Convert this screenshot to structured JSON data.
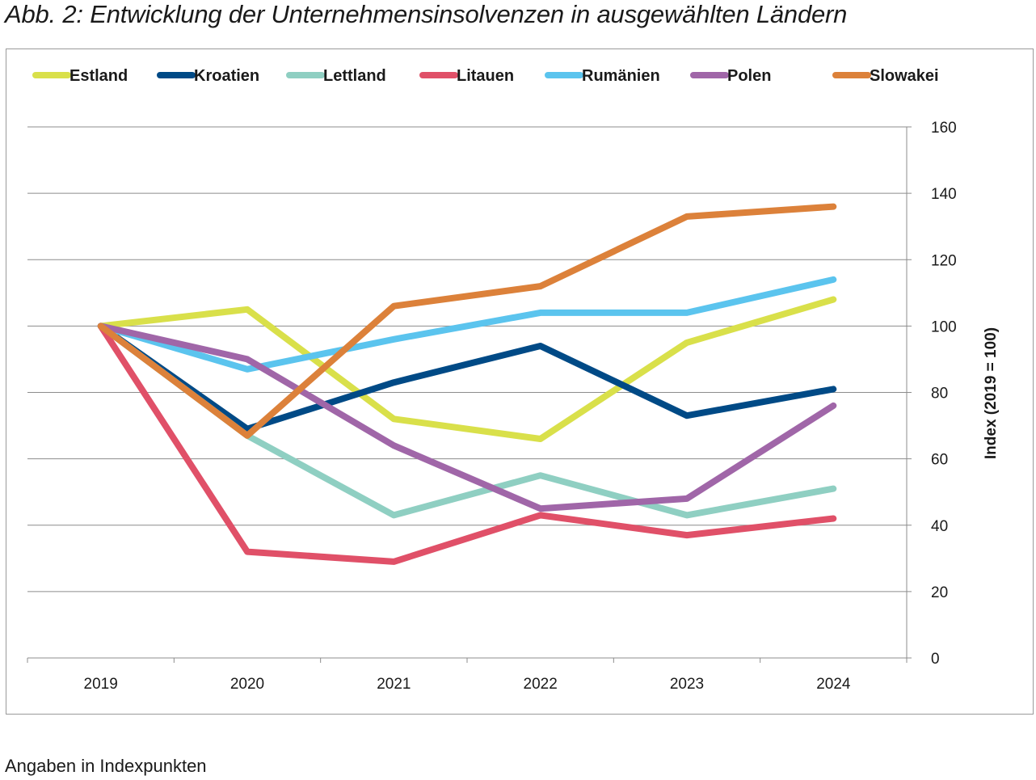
{
  "title": "Abb. 2: Entwicklung der Unternehmensinsolvenzen in ausgewählten Ländern",
  "footnote": "Angaben in Indexpunkten",
  "chart_data": {
    "type": "line",
    "title": "Abb. 2: Entwicklung der Unternehmensinsolvenzen in ausgewählten Ländern",
    "x": [
      "2019",
      "2020",
      "2021",
      "2022",
      "2023",
      "2024"
    ],
    "xlabel": "",
    "ylabel": "Index (2019 = 100)",
    "ylim": [
      0,
      160
    ],
    "yticks": [
      0,
      20,
      40,
      60,
      80,
      100,
      120,
      140,
      160
    ],
    "y_axis_side": "right",
    "grid": "horizontal",
    "legend_position": "top",
    "series": [
      {
        "name": "Estland",
        "color": "#d9e04a",
        "values": [
          100,
          105,
          72,
          66,
          95,
          108
        ]
      },
      {
        "name": "Kroatien",
        "color": "#004a86",
        "values": [
          100,
          69,
          83,
          94,
          73,
          81
        ]
      },
      {
        "name": "Lettland",
        "color": "#8fcfc2",
        "values": [
          100,
          67,
          43,
          55,
          43,
          51
        ]
      },
      {
        "name": "Litauen",
        "color": "#e05068",
        "values": [
          100,
          32,
          29,
          43,
          37,
          42
        ]
      },
      {
        "name": "Rumänien",
        "color": "#5bc4ee",
        "values": [
          100,
          87,
          96,
          104,
          104,
          114
        ]
      },
      {
        "name": "Polen",
        "color": "#a066a8",
        "values": [
          100,
          90,
          64,
          45,
          48,
          76
        ]
      },
      {
        "name": "Slowakei",
        "color": "#dc813a",
        "values": [
          100,
          67,
          106,
          112,
          133,
          136
        ]
      }
    ]
  }
}
